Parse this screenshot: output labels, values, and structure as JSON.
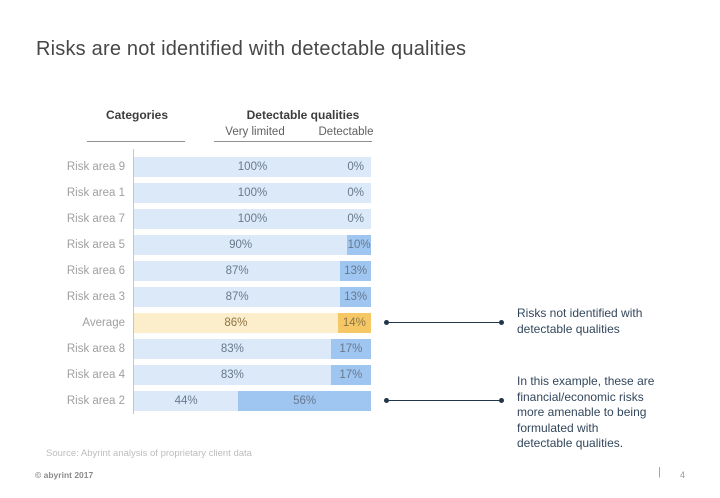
{
  "slide": {
    "title": "Risks are not identified with detectable qualities",
    "source": "Source: Abyrint analysis of proprietary client data",
    "footer": {
      "copyright": "© abyrint 2017",
      "separator": "|",
      "page_number": "4"
    }
  },
  "chart_data": {
    "type": "bar",
    "subtype": "horizontal-stacked-100pct",
    "title": "Risks are not identified with detectable qualities",
    "headers": {
      "categories": "Categories",
      "group": "Detectable qualities",
      "sub_left": "Very limited",
      "sub_right": "Detectable"
    },
    "categories": [
      "Risk area 9",
      "Risk area 1",
      "Risk area 7",
      "Risk area 5",
      "Risk area 6",
      "Risk area 3",
      "Average",
      "Risk area 8",
      "Risk area 4",
      "Risk area 2"
    ],
    "series": [
      {
        "name": "Very limited",
        "values": [
          100,
          100,
          100,
          90,
          87,
          87,
          86,
          83,
          83,
          44
        ]
      },
      {
        "name": "Detectable",
        "values": [
          0,
          0,
          0,
          10,
          13,
          13,
          14,
          17,
          17,
          56
        ]
      }
    ],
    "value_format": "percent",
    "xlim": [
      0,
      100
    ],
    "grid": false,
    "legend_position": "none",
    "highlight_category": "Average",
    "colors": {
      "very_limited": "#dce9f8",
      "detectable": "#9fc5f1",
      "highlight_very_limited": "#fcedcb",
      "highlight_detectable": "#f6c765",
      "value_text": "#68798d",
      "highlight_value_text": "#8c7446",
      "annotation_text": "#33475c",
      "connector": "#223649"
    }
  },
  "annotations": [
    {
      "text": "Risks not identified with\ndetectable qualities",
      "target_category": "Average"
    },
    {
      "text": "In this example, these are\nfinancial/economic risks\nmore amenable to being\nformulated with\ndetectable qualities.",
      "target_category": "Risk area 2"
    }
  ]
}
